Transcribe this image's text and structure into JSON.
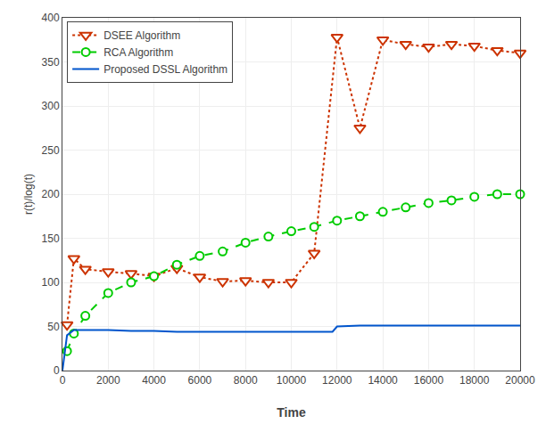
{
  "chart_data": {
    "type": "line",
    "title": "",
    "xlabel": "Time",
    "ylabel": "r(t)/log(t)",
    "xlim": [
      0,
      20000
    ],
    "ylim": [
      0,
      400
    ],
    "xticks": [
      0,
      2000,
      4000,
      6000,
      8000,
      10000,
      12000,
      14000,
      16000,
      18000,
      20000
    ],
    "yticks": [
      0,
      50,
      100,
      150,
      200,
      250,
      300,
      350,
      400
    ],
    "grid": true,
    "legend": "upper left",
    "series": [
      {
        "name": "DSEE Algorithm",
        "color": "#CC3300",
        "marker": "triangle-down",
        "line_style": "dot",
        "x": [
          200,
          500,
          1000,
          2000,
          3000,
          4000,
          5000,
          6000,
          7000,
          8000,
          9000,
          10000,
          11000,
          12000,
          13000,
          14000,
          15000,
          16000,
          17000,
          18000,
          19000,
          20000
        ],
        "values": [
          52,
          127,
          115,
          112,
          110,
          107,
          116,
          106,
          101,
          102,
          100,
          100,
          133,
          378,
          275,
          375,
          370,
          367,
          370,
          368,
          363,
          360
        ]
      },
      {
        "name": "RCA Algorithm",
        "color": "#00CC00",
        "marker": "circle",
        "line_style": "dash",
        "x": [
          200,
          500,
          1000,
          2000,
          3000,
          4000,
          5000,
          6000,
          7000,
          8000,
          9000,
          10000,
          11000,
          12000,
          13000,
          14000,
          15000,
          16000,
          17000,
          18000,
          19000,
          20000
        ],
        "values": [
          22,
          42,
          62,
          88,
          100,
          107,
          120,
          130,
          135,
          145,
          152,
          158,
          163,
          170,
          175,
          180,
          185,
          190,
          193,
          197,
          200,
          200
        ]
      },
      {
        "name": "Proposed DSSL Algorithm",
        "color": "#0055CC",
        "line_style": "solid",
        "x": [
          0,
          200,
          500,
          1000,
          2000,
          3000,
          4000,
          5000,
          6000,
          7000,
          8000,
          9000,
          10000,
          11000,
          11800,
          12000,
          13000,
          14000,
          15000,
          16000,
          17000,
          18000,
          19000,
          20000
        ],
        "values": [
          0,
          40,
          46,
          46,
          46,
          45,
          45,
          44,
          44,
          44,
          44,
          44,
          44,
          44,
          44,
          50,
          51,
          51,
          51,
          51,
          51,
          51,
          51,
          51
        ]
      }
    ]
  }
}
